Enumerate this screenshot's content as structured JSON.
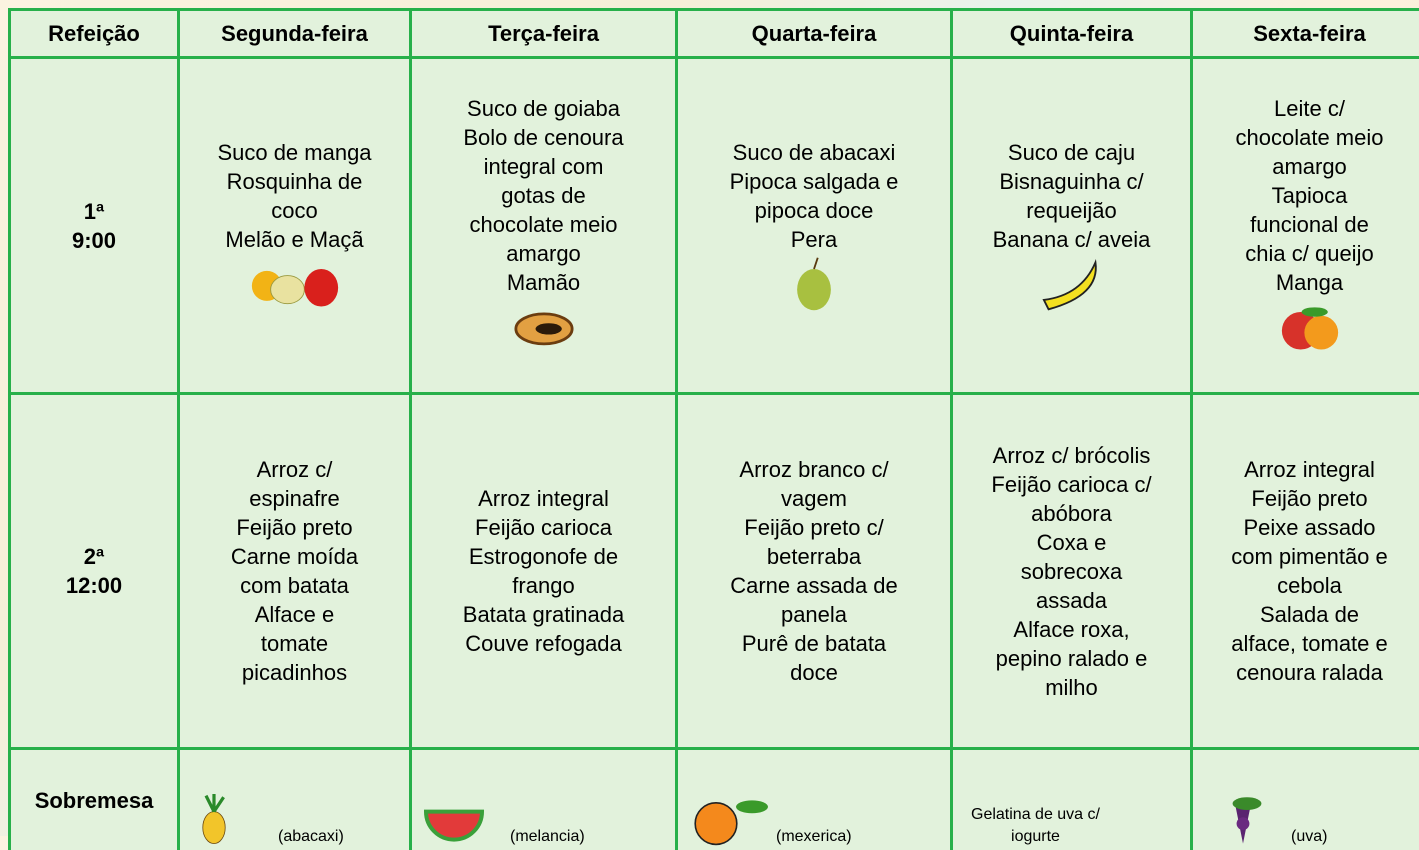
{
  "table": {
    "header": [
      "Refeição",
      "Segunda-feira",
      "Terça-feira",
      "Quarta-feira",
      "Quinta-feira",
      "Sexta-feira"
    ],
    "rows": [
      {
        "label": [
          "1ª",
          "9:00"
        ],
        "cells": [
          [
            "Suco de manga",
            "Rosquinha de",
            "coco",
            "Melão e Maçã"
          ],
          [
            "Suco de goiaba",
            "Bolo de cenoura",
            "integral com",
            "gotas de",
            "chocolate meio",
            "amargo",
            "Mamão"
          ],
          [
            "Suco de abacaxi",
            "Pipoca salgada e",
            "pipoca doce",
            "Pera"
          ],
          [
            "Suco de caju",
            "Bisnaguinha c/",
            "requeijão",
            "Banana c/ aveia"
          ],
          [
            "Leite c/",
            "chocolate meio",
            "amargo",
            "Tapioca",
            "funcional de",
            "chia c/ queijo",
            "Manga"
          ]
        ]
      },
      {
        "label": [
          "2ª",
          "12:00"
        ],
        "cells": [
          [
            "Arroz c/",
            "espinafre",
            "Feijão preto",
            "Carne moída",
            "com batata",
            "Alface e",
            "tomate",
            "picadinhos"
          ],
          [
            "Arroz integral",
            "Feijão carioca",
            "Estrogonofe de",
            "frango",
            "Batata gratinada",
            "Couve refogada"
          ],
          [
            "Arroz branco c/",
            "vagem",
            "Feijão preto c/",
            "beterraba",
            "Carne assada de",
            "panela",
            "Purê de batata",
            "doce"
          ],
          [
            "Arroz c/ brócolis",
            "Feijão carioca c/",
            "abóbora",
            "Coxa e",
            "sobrecoxa",
            "assada",
            "Alface roxa,",
            "pepino ralado e",
            "milho"
          ],
          [
            "Arroz integral",
            "Feijão preto",
            "Peixe assado",
            "com pimentão e",
            "cebola",
            "Salada de",
            "alface, tomate e",
            "cenoura ralada"
          ]
        ]
      },
      {
        "label": [
          "Sobremesa"
        ],
        "cells": [
          [
            "(abacaxi)"
          ],
          [
            "(melancia)"
          ],
          [
            "(mexerica)"
          ],
          [
            "Gelatina de uva c/",
            "iogurte"
          ],
          [
            "(uva)"
          ]
        ]
      }
    ]
  }
}
